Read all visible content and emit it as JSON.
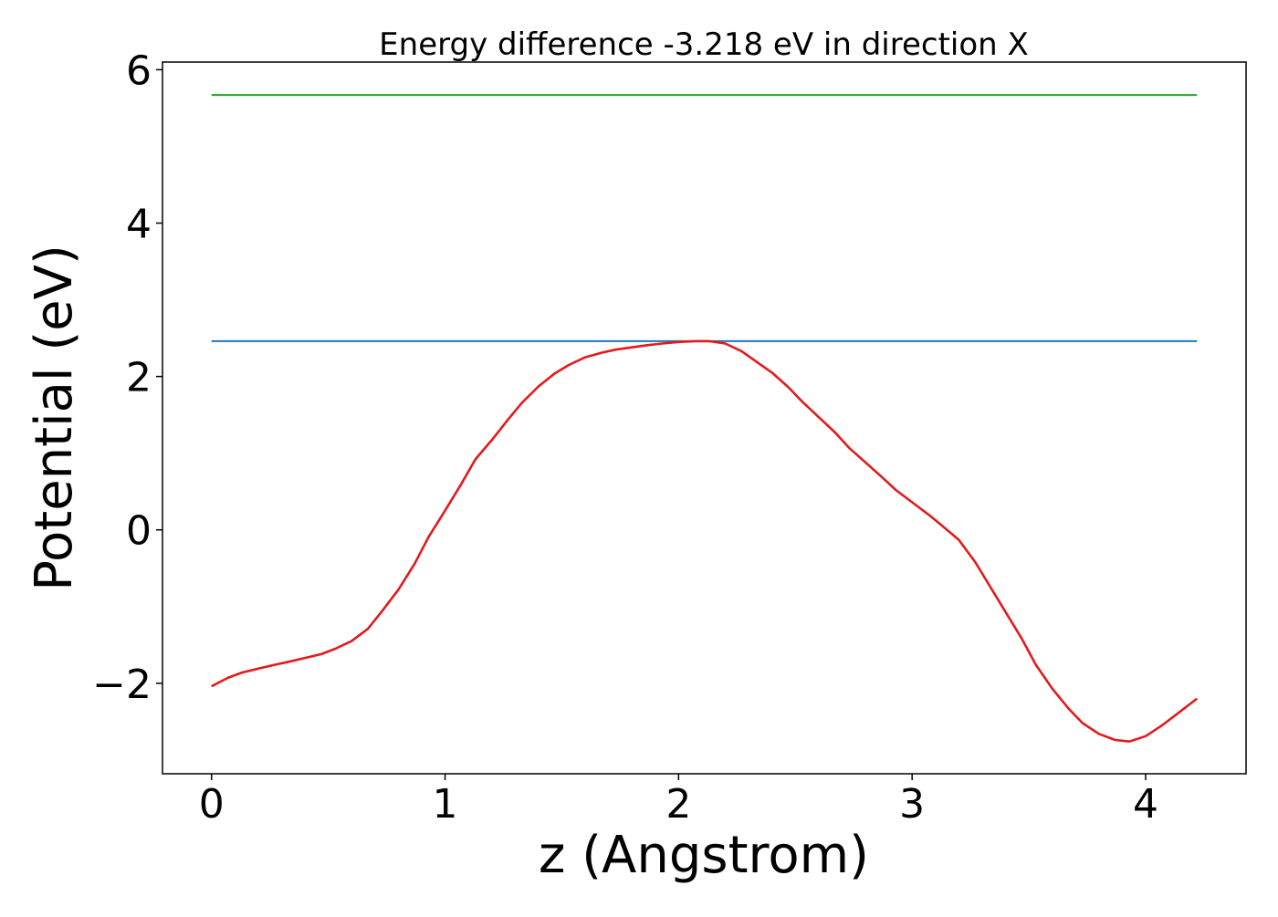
{
  "chart_data": {
    "type": "line",
    "title": "Energy difference -3.218 eV in direction X",
    "xlabel": "z (Angstrom)",
    "ylabel": "Potential (eV)",
    "xlim": [
      -0.21,
      4.43
    ],
    "ylim": [
      -3.18,
      6.1
    ],
    "xticks": [
      0,
      1,
      2,
      3,
      4
    ],
    "xtick_labels": [
      "0",
      "1",
      "2",
      "3",
      "4"
    ],
    "yticks": [
      -2,
      0,
      2,
      4,
      6
    ],
    "ytick_labels": [
      "−2",
      "0",
      "2",
      "4",
      "6"
    ],
    "grid": false,
    "series": [
      {
        "color": "#2ca02c",
        "x": [
          0.0,
          4.22
        ],
        "y": [
          5.67,
          5.67
        ]
      },
      {
        "color": "#1f77b4",
        "x": [
          0.0,
          4.22
        ],
        "y": [
          2.46,
          2.46
        ]
      },
      {
        "color": "#e31a1c",
        "x": [
          0.0,
          0.07,
          0.13,
          0.2,
          0.27,
          0.33,
          0.4,
          0.47,
          0.53,
          0.6,
          0.67,
          0.73,
          0.8,
          0.87,
          0.93,
          1.0,
          1.07,
          1.13,
          1.2,
          1.27,
          1.33,
          1.4,
          1.47,
          1.53,
          1.6,
          1.67,
          1.73,
          1.8,
          1.87,
          1.93,
          2.0,
          2.07,
          2.13,
          2.2,
          2.27,
          2.33,
          2.4,
          2.47,
          2.53,
          2.6,
          2.67,
          2.73,
          2.8,
          2.87,
          2.93,
          3.0,
          3.07,
          3.13,
          3.2,
          3.27,
          3.33,
          3.4,
          3.47,
          3.53,
          3.6,
          3.67,
          3.73,
          3.8,
          3.87,
          3.93,
          4.0,
          4.07,
          4.13,
          4.22
        ],
        "y": [
          -2.04,
          -1.93,
          -1.86,
          -1.81,
          -1.76,
          -1.72,
          -1.67,
          -1.62,
          -1.55,
          -1.45,
          -1.29,
          -1.06,
          -0.78,
          -0.44,
          -0.09,
          0.25,
          0.6,
          0.92,
          1.17,
          1.44,
          1.66,
          1.87,
          2.04,
          2.15,
          2.25,
          2.31,
          2.35,
          2.38,
          2.41,
          2.43,
          2.45,
          2.46,
          2.46,
          2.43,
          2.33,
          2.2,
          2.05,
          1.86,
          1.67,
          1.47,
          1.27,
          1.07,
          0.88,
          0.69,
          0.52,
          0.36,
          0.2,
          0.05,
          -0.13,
          -0.42,
          -0.72,
          -1.07,
          -1.42,
          -1.76,
          -2.07,
          -2.33,
          -2.52,
          -2.66,
          -2.74,
          -2.76,
          -2.69,
          -2.55,
          -2.41,
          -2.2
        ]
      }
    ]
  }
}
